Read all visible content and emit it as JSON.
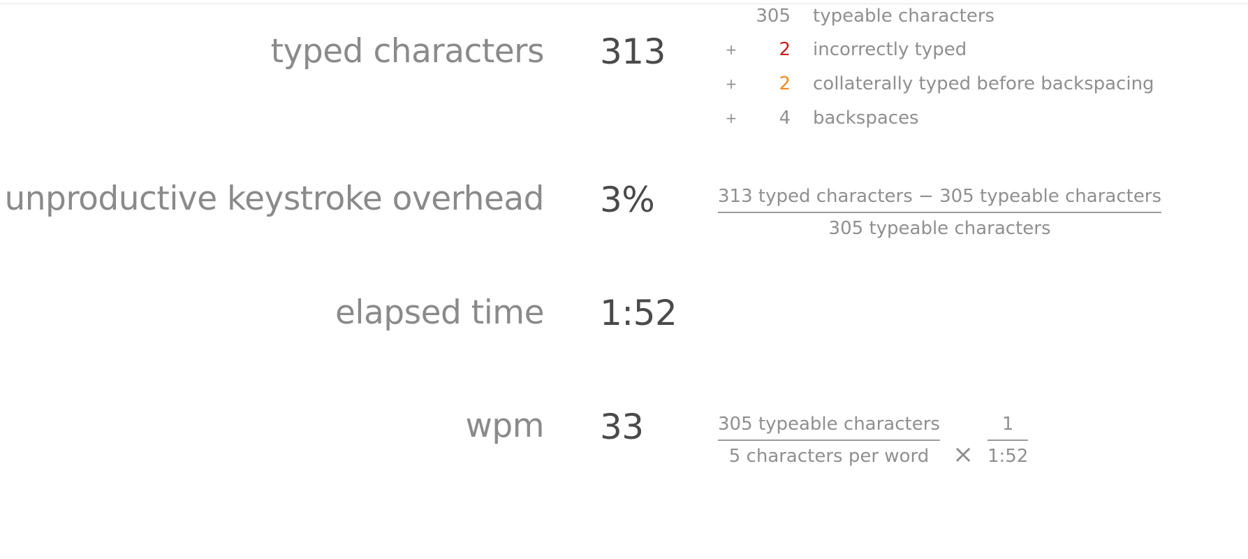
{
  "stats": {
    "typed_characters": {
      "label": "typed characters",
      "value": "313",
      "breakdown": [
        {
          "op": "",
          "num": "305",
          "text": "typeable characters",
          "color": "#8f8f8f"
        },
        {
          "op": "+",
          "num": "2",
          "text": "incorrectly typed",
          "color": "#c62020"
        },
        {
          "op": "+",
          "num": "2",
          "text": "collaterally typed before backspacing",
          "color": "#ef8a1a"
        },
        {
          "op": "+",
          "num": "4",
          "text": "backspaces",
          "color": "#8f8f8f"
        }
      ]
    },
    "overhead": {
      "label": "unproductive keystroke overhead",
      "value": "3%",
      "formula_numerator": "313 typed characters − 305 typeable characters",
      "formula_denominator": "305 typeable characters"
    },
    "elapsed_time": {
      "label": "elapsed time",
      "value": "1:52"
    },
    "wpm": {
      "label": "wpm",
      "value": "33",
      "formula_left_numerator": "305 typeable characters",
      "formula_left_denominator": "5 characters per word",
      "operator": "×",
      "formula_right_numerator": "1",
      "formula_right_denominator": "1:52"
    }
  }
}
